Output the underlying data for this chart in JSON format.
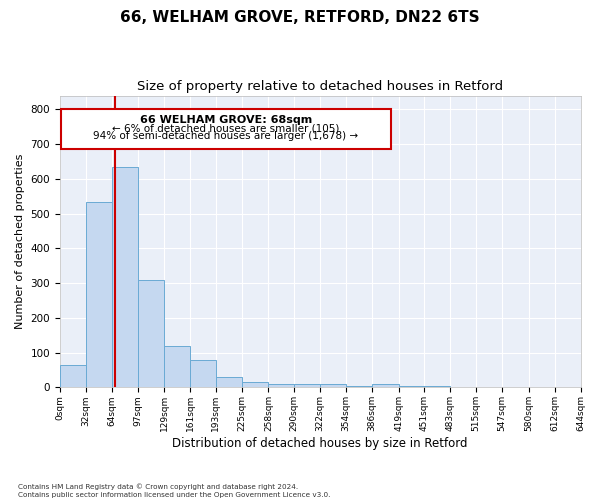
{
  "title1": "66, WELHAM GROVE, RETFORD, DN22 6TS",
  "title2": "Size of property relative to detached houses in Retford",
  "xlabel": "Distribution of detached houses by size in Retford",
  "ylabel": "Number of detached properties",
  "footnote": "Contains HM Land Registry data © Crown copyright and database right 2024.\nContains public sector information licensed under the Open Government Licence v3.0.",
  "bin_edges": [
    0,
    32,
    64,
    97,
    129,
    161,
    193,
    225,
    258,
    290,
    322,
    354,
    386,
    419,
    451,
    483,
    515,
    547,
    580,
    612,
    644
  ],
  "bar_heights": [
    65,
    535,
    635,
    310,
    120,
    78,
    30,
    15,
    10,
    10,
    10,
    5,
    10,
    3,
    5,
    0,
    0,
    0,
    0,
    0
  ],
  "bar_color": "#c5d8f0",
  "bar_edge_color": "#6aaad4",
  "property_size": 68,
  "property_label": "66 WELHAM GROVE: 68sqm",
  "annotation_line1": "← 6% of detached houses are smaller (105)",
  "annotation_line2": "94% of semi-detached houses are larger (1,678) →",
  "annotation_box_color": "#cc0000",
  "vline_color": "#cc0000",
  "ylim": [
    0,
    840
  ],
  "yticks": [
    0,
    100,
    200,
    300,
    400,
    500,
    600,
    700,
    800
  ],
  "bg_color": "#eaeff8",
  "grid_color": "#ffffff",
  "title1_fontsize": 11,
  "title2_fontsize": 9.5
}
